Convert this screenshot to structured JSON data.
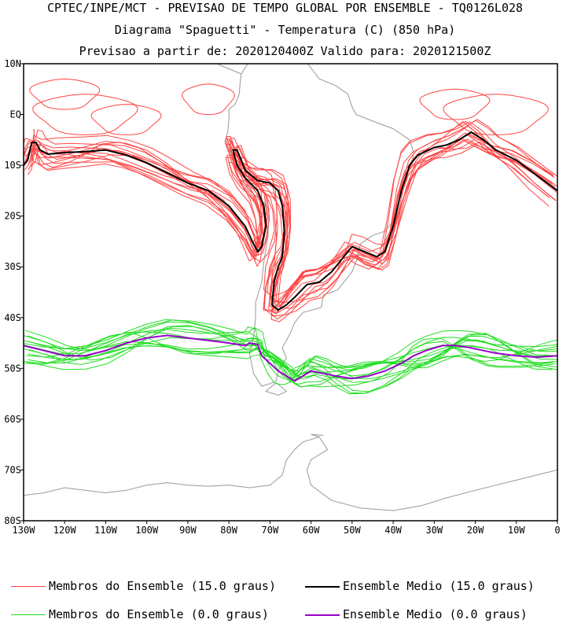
{
  "header": {
    "line1": "CPTEC/INPE/MCT - PREVISAO DE TEMPO GLOBAL POR ENSEMBLE - TQ0126L028",
    "line2": "Diagrama \"Spaguetti\" - Temperatura (C) (850 hPa)",
    "line3": "Previsao a partir de: 2020120400Z  Valido para: 2020121500Z"
  },
  "colors": {
    "members_15": "#ff4444",
    "mean_15": "#000000",
    "members_0": "#22dd22",
    "mean_0": "#9900cc",
    "coast": "#999999"
  },
  "legend": {
    "members_15": "Membros do Ensemble (15.0 graus)",
    "mean_15": "Ensemble Medio (15.0 graus)",
    "members_0": "Membros do Ensemble (0.0 graus)",
    "mean_0": "Ensemble Medio (0.0 graus)"
  },
  "chart_data": {
    "type": "line",
    "title": "Diagrama \"Spaguetti\" - Temperatura (C) (850 hPa)",
    "xlim": [
      -130,
      0
    ],
    "ylim": [
      -80,
      10
    ],
    "x_ticks": [
      {
        "value": -130,
        "label": "130W"
      },
      {
        "value": -120,
        "label": "120W"
      },
      {
        "value": -110,
        "label": "110W"
      },
      {
        "value": -100,
        "label": "100W"
      },
      {
        "value": -90,
        "label": "90W"
      },
      {
        "value": -80,
        "label": "80W"
      },
      {
        "value": -70,
        "label": "70W"
      },
      {
        "value": -60,
        "label": "60W"
      },
      {
        "value": -50,
        "label": "50W"
      },
      {
        "value": -40,
        "label": "40W"
      },
      {
        "value": -30,
        "label": "30W"
      },
      {
        "value": -20,
        "label": "20W"
      },
      {
        "value": -10,
        "label": "10W"
      },
      {
        "value": 0,
        "label": "0"
      }
    ],
    "y_ticks": [
      {
        "value": 10,
        "label": "10N"
      },
      {
        "value": 0,
        "label": "EQ"
      },
      {
        "value": -10,
        "label": "10S"
      },
      {
        "value": -20,
        "label": "20S"
      },
      {
        "value": -30,
        "label": "30S"
      },
      {
        "value": -40,
        "label": "40S"
      },
      {
        "value": -50,
        "label": "50S"
      },
      {
        "value": -60,
        "label": "60S"
      },
      {
        "value": -70,
        "label": "70S"
      },
      {
        "value": -80,
        "label": "80S"
      }
    ],
    "series": [
      {
        "name": "Ensemble Medio (15.0 graus)",
        "role": "mean",
        "points": [
          [
            -130,
            -10
          ],
          [
            -129,
            -9
          ],
          [
            -128,
            -5.5
          ],
          [
            -127,
            -5.5
          ],
          [
            -126,
            -7
          ],
          [
            -124,
            -7.8
          ],
          [
            -120,
            -7.5
          ],
          [
            -115,
            -7.3
          ],
          [
            -110,
            -7
          ],
          [
            -105,
            -8
          ],
          [
            -100,
            -9.5
          ],
          [
            -95,
            -11.5
          ],
          [
            -90,
            -13.5
          ],
          [
            -85,
            -15
          ],
          [
            -80,
            -18
          ],
          [
            -76,
            -22
          ],
          [
            -74,
            -25.5
          ],
          [
            -73,
            -27
          ],
          [
            -72,
            -26
          ],
          [
            -71,
            -22
          ],
          [
            -71.5,
            -18
          ],
          [
            -73,
            -15
          ],
          [
            -76,
            -12.5
          ],
          [
            -78,
            -10
          ],
          [
            -79,
            -7
          ],
          [
            -78,
            -7
          ],
          [
            -76,
            -11
          ],
          [
            -73,
            -13
          ],
          [
            -70,
            -13.5
          ],
          [
            -68,
            -15
          ],
          [
            -67,
            -18
          ],
          [
            -66.5,
            -23
          ],
          [
            -67,
            -28
          ],
          [
            -68,
            -30
          ],
          [
            -69,
            -33
          ],
          [
            -69.5,
            -37.5
          ],
          [
            -68,
            -38.5
          ],
          [
            -66,
            -37.5
          ],
          [
            -64,
            -36
          ],
          [
            -61,
            -33.5
          ],
          [
            -58,
            -33
          ],
          [
            -55,
            -31
          ],
          [
            -52,
            -28
          ],
          [
            -50,
            -26
          ],
          [
            -47,
            -27
          ],
          [
            -44,
            -28
          ],
          [
            -42,
            -27
          ],
          [
            -40,
            -22
          ],
          [
            -38,
            -15
          ],
          [
            -36,
            -10
          ],
          [
            -34,
            -8
          ],
          [
            -30,
            -6.5
          ],
          [
            -27,
            -6
          ],
          [
            -24,
            -5
          ],
          [
            -21,
            -3.5
          ],
          [
            -18,
            -5
          ],
          [
            -15,
            -7
          ],
          [
            -10,
            -9
          ],
          [
            -5,
            -12
          ],
          [
            0,
            -15
          ]
        ]
      },
      {
        "name": "Ensemble Medio (0.0 graus)",
        "role": "mean",
        "points": [
          [
            -130,
            -45.5
          ],
          [
            -125,
            -46.5
          ],
          [
            -120,
            -47.5
          ],
          [
            -115,
            -47.5
          ],
          [
            -110,
            -46.5
          ],
          [
            -105,
            -45
          ],
          [
            -100,
            -44
          ],
          [
            -95,
            -43.5
          ],
          [
            -90,
            -44
          ],
          [
            -85,
            -44.5
          ],
          [
            -80,
            -45
          ],
          [
            -76,
            -45.5
          ],
          [
            -75,
            -45
          ],
          [
            -73,
            -45.3
          ],
          [
            -72,
            -47.5
          ],
          [
            -70,
            -49
          ],
          [
            -68,
            -50.5
          ],
          [
            -66,
            -51.5
          ],
          [
            -64,
            -52.5
          ],
          [
            -62,
            -51.5
          ],
          [
            -60,
            -50.5
          ],
          [
            -57,
            -51
          ],
          [
            -54,
            -51.5
          ],
          [
            -50,
            -52
          ],
          [
            -46,
            -51.5
          ],
          [
            -42,
            -50.5
          ],
          [
            -38,
            -49
          ],
          [
            -35,
            -47.5
          ],
          [
            -32,
            -46.5
          ],
          [
            -28,
            -45.5
          ],
          [
            -25,
            -45.5
          ],
          [
            -22,
            -45.8
          ],
          [
            -18,
            -46.5
          ],
          [
            -15,
            -47
          ],
          [
            -10,
            -47.5
          ],
          [
            -5,
            -47.8
          ],
          [
            0,
            -47.5
          ]
        ]
      },
      {
        "name": "Membros do Ensemble (15.0 graus)",
        "role": "members",
        "count": 15
      },
      {
        "name": "Membros do Ensemble (0.0 graus)",
        "role": "members",
        "count": 15
      }
    ]
  }
}
